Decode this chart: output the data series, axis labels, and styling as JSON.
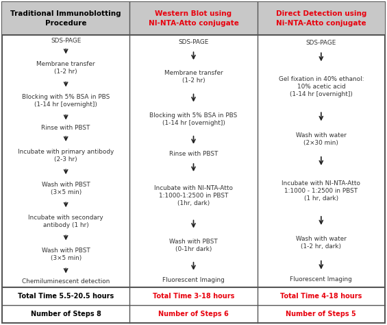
{
  "title_col1": "Traditional Immunoblotting\nProcedure",
  "title_col2": "Western Blot using\nNI-NTA-Atto conjugate",
  "title_col3": "Direct Detection using\nNi-NTA-Atto conjugate",
  "col1_steps": [
    "SDS-PAGE",
    "Membrane transfer\n(1-2 hr)",
    "Blocking with 5% BSA in PBS\n(1-14 hr [overnight])",
    "Rinse with PBST",
    "Incubate with primary antibody\n(2-3 hr)",
    "Wash with PBST\n(3×5 min)",
    "Incubate with secondary\nantibody (1 hr)",
    "Wash with PBST\n(3×5 min)",
    "Chemiluminescent detection"
  ],
  "col2_steps": [
    "SDS-PAGE",
    "Membrane transfer\n(1-2 hr)",
    "Blocking with 5% BSA in PBS\n(1-14 hr [overnight])",
    "Rinse with PBST",
    "Incubate with NI-NTA-Atto\n1:1000-1:2500 in PBST\n(1hr, dark)",
    "Wash with PBST\n(0-1hr dark)",
    "Fluorescent Imaging"
  ],
  "col3_steps": [
    "SDS-PAGE",
    "Gel fixation in 40% ethanol:\n10% acetic acid\n(1-14 hr [overnight])",
    "Wash with water\n(2×30 min)",
    "Incubate with NI-NTA-Atto\n1:1000 - 1:2500 in PBST\n(1 hr, dark)",
    "Wash with water\n(1-2 hr, dark)",
    "Fluorescent Imaging"
  ],
  "footer_col1_line1": "Total Time 5.5-20.5 hours",
  "footer_col1_line2": "Number of Steps 8",
  "footer_col2_line1": "Total Time 3-18 hours",
  "footer_col2_line2": "Number of Steps 6",
  "footer_col3_line1": "Total Time 4-18 hours",
  "footer_col3_line2": "Number of Steps 5",
  "header_bg_color": "#c8c8c8",
  "header_text_color_col1": "#000000",
  "header_text_color_col2": "#e8000d",
  "header_text_color_col3": "#e8000d",
  "border_color": "#555555",
  "arrow_color": "#222222",
  "step_text_color": "#333333",
  "footer_text_color_col1": "#000000",
  "footer_text_color_col23": "#e8000d",
  "fig_width": 5.65,
  "fig_height": 4.74
}
